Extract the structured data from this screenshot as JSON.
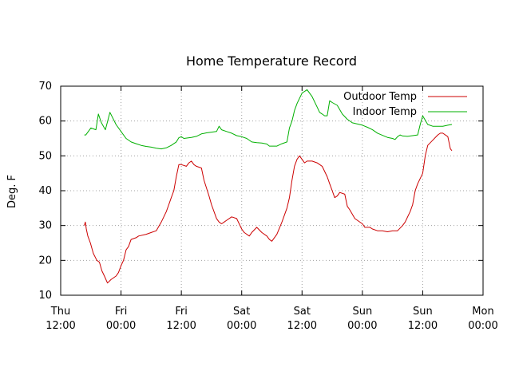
{
  "chart_data": {
    "type": "line",
    "title": "Home Temperature Record",
    "ylabel": "Deg. F",
    "xlabel": "",
    "ylim": [
      10,
      70
    ],
    "yticks": [
      10,
      20,
      30,
      40,
      50,
      60,
      70
    ],
    "x_unit": "hours since Thu 12:00",
    "xlim": [
      0,
      84
    ],
    "xticks": [
      {
        "x": 0,
        "line1": "Thu",
        "line2": "12:00"
      },
      {
        "x": 12,
        "line1": "Fri",
        "line2": "00:00"
      },
      {
        "x": 24,
        "line1": "Fri",
        "line2": "12:00"
      },
      {
        "x": 36,
        "line1": "Sat",
        "line2": "00:00"
      },
      {
        "x": 48,
        "line1": "Sat",
        "line2": "12:00"
      },
      {
        "x": 60,
        "line1": "Sun",
        "line2": "00:00"
      },
      {
        "x": 72,
        "line1": "Sun",
        "line2": "12:00"
      },
      {
        "x": 84,
        "line1": "Mon",
        "line2": "00:00"
      }
    ],
    "grid": true,
    "legend_position": "top-right",
    "series": [
      {
        "name": "Outdoor Temp",
        "color": "#cc0000",
        "points": [
          [
            4.7,
            30
          ],
          [
            4.9,
            31
          ],
          [
            5.1,
            29
          ],
          [
            5.4,
            27
          ],
          [
            5.9,
            25
          ],
          [
            6.5,
            22
          ],
          [
            7.2,
            20
          ],
          [
            7.7,
            19.5
          ],
          [
            8.2,
            17
          ],
          [
            8.7,
            15.5
          ],
          [
            9.3,
            13.5
          ],
          [
            10,
            14.5
          ],
          [
            11,
            15.5
          ],
          [
            11.5,
            16.5
          ],
          [
            12,
            18.5
          ],
          [
            12.5,
            20
          ],
          [
            13,
            23
          ],
          [
            13.5,
            24
          ],
          [
            14,
            26
          ],
          [
            15,
            26.5
          ],
          [
            15.5,
            27
          ],
          [
            17,
            27.5
          ],
          [
            18,
            28
          ],
          [
            19,
            28.5
          ],
          [
            20,
            31
          ],
          [
            21,
            34
          ],
          [
            21.5,
            36
          ],
          [
            22,
            38
          ],
          [
            22.5,
            40
          ],
          [
            23,
            44
          ],
          [
            23.5,
            47.5
          ],
          [
            24,
            47.5
          ],
          [
            25,
            47
          ],
          [
            25.5,
            48
          ],
          [
            26,
            48.5
          ],
          [
            26.5,
            47.5
          ],
          [
            27,
            47
          ],
          [
            28,
            46.5
          ],
          [
            28.5,
            43
          ],
          [
            29.5,
            38.5
          ],
          [
            30,
            36
          ],
          [
            31,
            32
          ],
          [
            31.5,
            31
          ],
          [
            32,
            30.5
          ],
          [
            32.5,
            31
          ],
          [
            33,
            31.5
          ],
          [
            34,
            32.5
          ],
          [
            35,
            32
          ],
          [
            36,
            29
          ],
          [
            36.5,
            28
          ],
          [
            37.5,
            27
          ],
          [
            38,
            28
          ],
          [
            39,
            29.5
          ],
          [
            40,
            28
          ],
          [
            41,
            27
          ],
          [
            41.5,
            26
          ],
          [
            42,
            25.5
          ],
          [
            43,
            27.5
          ],
          [
            44,
            31
          ],
          [
            45,
            35
          ],
          [
            45.5,
            38
          ],
          [
            46,
            43
          ],
          [
            46.5,
            47
          ],
          [
            47,
            49
          ],
          [
            47.5,
            50
          ],
          [
            48,
            49
          ],
          [
            48.5,
            48
          ],
          [
            49,
            48.5
          ],
          [
            50,
            48.5
          ],
          [
            51,
            48
          ],
          [
            52,
            47
          ],
          [
            53,
            44
          ],
          [
            53.5,
            42
          ],
          [
            54,
            40
          ],
          [
            54.5,
            38
          ],
          [
            55,
            38.5
          ],
          [
            55.5,
            39.5
          ],
          [
            56.5,
            39
          ],
          [
            57,
            35.5
          ],
          [
            57.5,
            34.5
          ],
          [
            58.5,
            32
          ],
          [
            59,
            31.5
          ],
          [
            60,
            30.5
          ],
          [
            60.5,
            29.5
          ],
          [
            61.5,
            29.5
          ],
          [
            62,
            29
          ],
          [
            63,
            28.5
          ],
          [
            64,
            28.5
          ],
          [
            65,
            28.2
          ],
          [
            66,
            28.5
          ],
          [
            67,
            28.5
          ],
          [
            68,
            30
          ],
          [
            68.5,
            31
          ],
          [
            69.5,
            34
          ],
          [
            70,
            36
          ],
          [
            70.5,
            40
          ],
          [
            71,
            42
          ],
          [
            72,
            45
          ],
          [
            72.5,
            50
          ],
          [
            73,
            53
          ],
          [
            74,
            54.5
          ],
          [
            75,
            56
          ],
          [
            75.5,
            56.5
          ],
          [
            76,
            56.5
          ],
          [
            77,
            55.5
          ],
          [
            77.5,
            52
          ],
          [
            77.8,
            51.5
          ]
        ]
      },
      {
        "name": "Indoor Temp",
        "color": "#00b000",
        "points": [
          [
            4.7,
            56
          ],
          [
            5,
            56
          ],
          [
            6,
            58
          ],
          [
            7,
            57.5
          ],
          [
            7.5,
            62
          ],
          [
            8.1,
            59.5
          ],
          [
            8.9,
            57.5
          ],
          [
            9.8,
            62.5
          ],
          [
            11,
            59
          ],
          [
            12,
            57
          ],
          [
            13,
            55
          ],
          [
            14,
            54
          ],
          [
            15,
            53.5
          ],
          [
            16,
            53
          ],
          [
            17,
            52.7
          ],
          [
            18,
            52.5
          ],
          [
            19,
            52.2
          ],
          [
            20,
            52
          ],
          [
            21,
            52.3
          ],
          [
            22,
            53
          ],
          [
            23,
            54
          ],
          [
            23.5,
            55.2
          ],
          [
            24,
            55.5
          ],
          [
            24.5,
            55
          ],
          [
            26,
            55.3
          ],
          [
            27,
            55.6
          ],
          [
            28,
            56.3
          ],
          [
            29,
            56.6
          ],
          [
            30,
            56.8
          ],
          [
            31,
            57
          ],
          [
            31.5,
            58.5
          ],
          [
            32,
            57.5
          ],
          [
            33,
            57
          ],
          [
            34,
            56.5
          ],
          [
            35,
            55.8
          ],
          [
            36,
            55.5
          ],
          [
            37,
            55
          ],
          [
            38,
            54
          ],
          [
            39,
            53.8
          ],
          [
            40,
            53.7
          ],
          [
            41,
            53.4
          ],
          [
            41.5,
            52.8
          ],
          [
            42,
            52.8
          ],
          [
            43,
            52.8
          ],
          [
            44,
            53.5
          ],
          [
            45,
            54
          ],
          [
            45.5,
            58
          ],
          [
            46,
            60
          ],
          [
            46.5,
            63
          ],
          [
            47,
            65
          ],
          [
            47.5,
            66.5
          ],
          [
            48,
            68
          ],
          [
            49,
            69
          ],
          [
            50,
            67
          ],
          [
            51,
            64
          ],
          [
            51.5,
            62.5
          ],
          [
            52,
            62
          ],
          [
            52.5,
            61.5
          ],
          [
            53,
            61.5
          ],
          [
            53.5,
            65.8
          ],
          [
            54,
            65.3
          ],
          [
            55,
            64.5
          ],
          [
            56,
            62
          ],
          [
            57,
            60.5
          ],
          [
            58,
            59.5
          ],
          [
            60,
            58.8
          ],
          [
            61,
            58.2
          ],
          [
            62,
            57.5
          ],
          [
            63,
            56.5
          ],
          [
            64,
            55.9
          ],
          [
            65,
            55.3
          ],
          [
            66,
            55
          ],
          [
            66.5,
            54.7
          ],
          [
            67,
            55.5
          ],
          [
            67.5,
            56
          ],
          [
            68,
            55.7
          ],
          [
            69,
            55.6
          ],
          [
            70,
            55.8
          ],
          [
            71,
            56
          ],
          [
            71.5,
            59
          ],
          [
            72,
            61.5
          ],
          [
            73,
            59
          ],
          [
            74,
            58.5
          ],
          [
            75,
            58.5
          ],
          [
            76,
            58.5
          ],
          [
            77,
            58.8
          ],
          [
            77.8,
            59
          ]
        ]
      }
    ]
  }
}
